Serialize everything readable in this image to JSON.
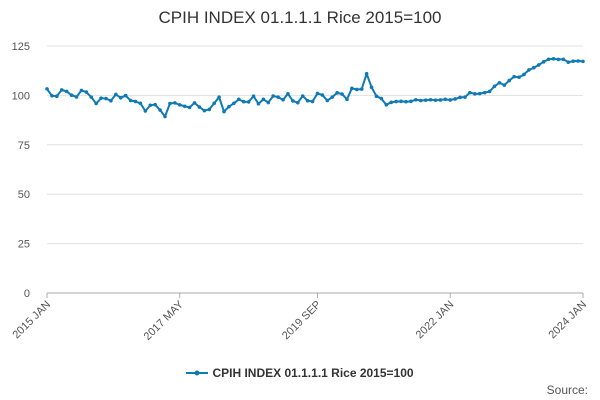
{
  "title": "CPIH INDEX 01.1.1.1 Rice 2015=100",
  "source_label": "Source:",
  "colors": {
    "series": "#0f7ab3",
    "grid": "#e0e0e0",
    "axis": "#aaaaaa"
  },
  "chart_data": {
    "type": "line",
    "title": "CPIH INDEX 01.1.1.1 Rice 2015=100",
    "xlabel": "",
    "ylabel": "",
    "ylim": [
      0,
      125
    ],
    "y_ticks": [
      0,
      25,
      50,
      75,
      100,
      125
    ],
    "x_tick_labels": [
      "2015 JAN",
      "2017 MAY",
      "2019 SEP",
      "2022 JAN",
      "2024 JAN"
    ],
    "grid": true,
    "legend_position": "bottom",
    "series": [
      {
        "name": "CPIH INDEX 01.1.1.1 Rice 2015=100",
        "start": "2015-01",
        "frequency": "monthly",
        "values": [
          103.3,
          99.8,
          99.6,
          102.8,
          102.0,
          100.1,
          99.2,
          102.5,
          101.7,
          99.1,
          95.9,
          98.6,
          98.4,
          97.3,
          100.5,
          98.8,
          99.9,
          97.4,
          96.9,
          96.0,
          92.1,
          95.0,
          95.3,
          92.6,
          89.3,
          95.9,
          96.2,
          95.2,
          94.5,
          93.9,
          96.2,
          94.1,
          92.3,
          92.9,
          96.0,
          99.1,
          91.8,
          94.3,
          96.0,
          98.0,
          96.8,
          96.7,
          99.6,
          95.8,
          98.0,
          96.4,
          99.7,
          99.1,
          97.8,
          100.8,
          97.2,
          96.3,
          99.7,
          97.3,
          96.9,
          101.0,
          100.2,
          97.4,
          99.1,
          101.3,
          100.7,
          98.0,
          103.6,
          103.0,
          103.2,
          111.0,
          104.1,
          99.6,
          98.4,
          95.2,
          96.5,
          96.9,
          97.0,
          96.8,
          97.0,
          97.8,
          97.4,
          97.6,
          97.8,
          97.6,
          97.7,
          98.0,
          97.7,
          98.2,
          99.0,
          99.1,
          101.4,
          100.8,
          100.9,
          101.4,
          102.0,
          104.6,
          106.4,
          105.2,
          107.5,
          109.5,
          109.2,
          110.6,
          112.9,
          114.0,
          115.4,
          117.0,
          118.3,
          118.5,
          118.2,
          118.3,
          116.8,
          117.3,
          117.4,
          117.2
        ]
      }
    ]
  }
}
